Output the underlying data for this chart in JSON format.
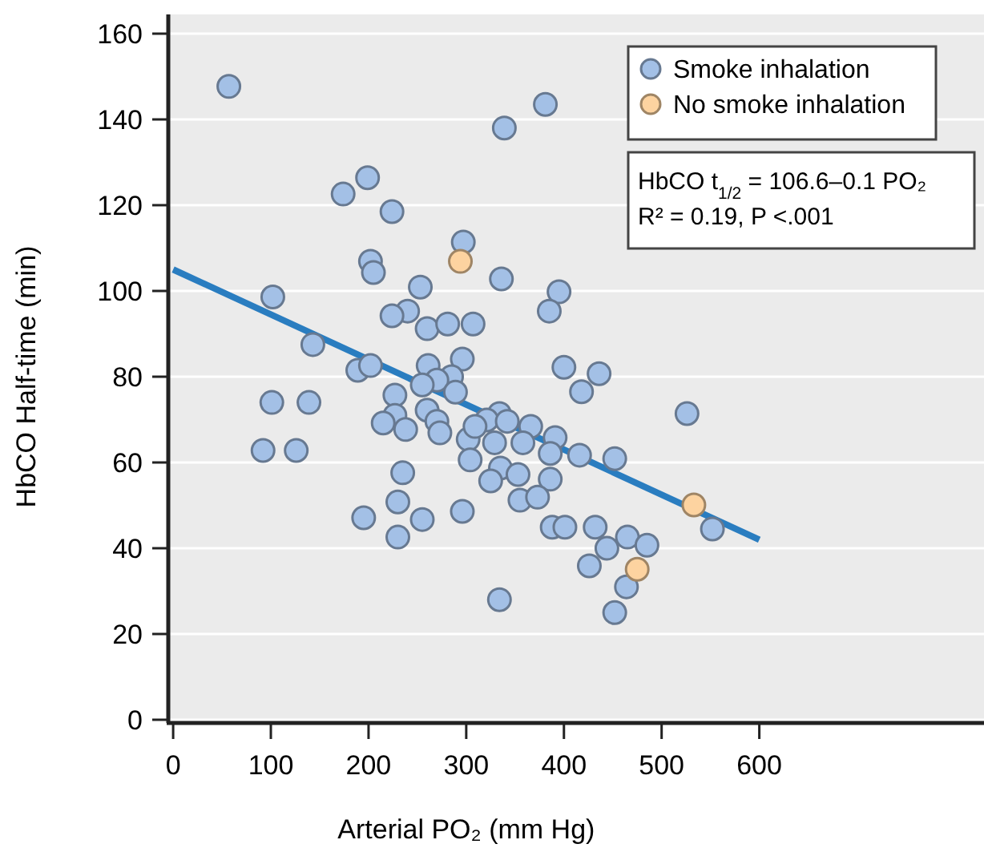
{
  "chart_data": {
    "type": "scatter",
    "xlabel": "Arterial PO₂ (mm Hg)",
    "ylabel": "HbCO Half-time (min)",
    "xlim": [
      -5,
      830
    ],
    "ylim": [
      0,
      160
    ],
    "xticks": [
      0,
      100,
      200,
      300,
      400,
      500,
      600
    ],
    "yticks": [
      0,
      20,
      40,
      60,
      80,
      100,
      120,
      140,
      160
    ],
    "grid": "y",
    "legend": "top right",
    "marker": "circle",
    "annotations": [
      "HbCO t$_{1/2}$ = 106.6–0.1 PO₂",
      "R² = 0.19, P <.001"
    ],
    "series": [
      {
        "name": "Smoke inhalation",
        "color": "#a3c0e6",
        "x": [
          57,
          381,
          339,
          199,
          174,
          224,
          297,
          202,
          205,
          253,
          102,
          240,
          224,
          260,
          281,
          307,
          143,
          296,
          261,
          189,
          202,
          285,
          270,
          255,
          336,
          395,
          385,
          400,
          436,
          418,
          101,
          139,
          92,
          126,
          227,
          227,
          215,
          238,
          260,
          270,
          273,
          289,
          302,
          304,
          235,
          230,
          195,
          255,
          230,
          296,
          526,
          334,
          321,
          342,
          366,
          309,
          329,
          358,
          391,
          386,
          416,
          452,
          335,
          353,
          325,
          386,
          355,
          373,
          552,
          388,
          401,
          432,
          465,
          485,
          444,
          426,
          464,
          452,
          334
        ],
        "values": [
          147.7,
          143.5,
          138,
          126.4,
          122.6,
          118.5,
          111.4,
          106.9,
          104.3,
          100.9,
          98.6,
          95.3,
          94.2,
          91.2,
          92.3,
          92.3,
          87.5,
          84.1,
          82.6,
          81.5,
          82.6,
          80,
          79.2,
          78.1,
          102.8,
          99.8,
          95.3,
          82.2,
          80.7,
          76.5,
          74,
          74,
          62.8,
          62.8,
          75.7,
          71,
          69.2,
          67.7,
          72.2,
          69.6,
          66.9,
          76.4,
          65.4,
          60.6,
          57.6,
          50.8,
          47.1,
          46.7,
          42.6,
          48.6,
          71.4,
          71.4,
          69.9,
          69.6,
          68.4,
          68.4,
          64.6,
          64.6,
          65.8,
          62.1,
          61.7,
          60.9,
          58.7,
          57.2,
          55.7,
          56.1,
          51.2,
          51.9,
          44.5,
          44.9,
          44.9,
          44.9,
          42.6,
          40.7,
          40,
          35.9,
          31,
          25,
          28
        ]
      },
      {
        "name": "No smoke inhalation",
        "color": "#fdd3a0",
        "x": [
          294,
          533,
          475
        ],
        "values": [
          106.9,
          50.1,
          35.1
        ]
      },
      {
        "type": "line",
        "color": "#2a7dc0",
        "x": [
          0,
          600
        ],
        "values": [
          105,
          42
        ],
        "marker": "none"
      }
    ]
  }
}
